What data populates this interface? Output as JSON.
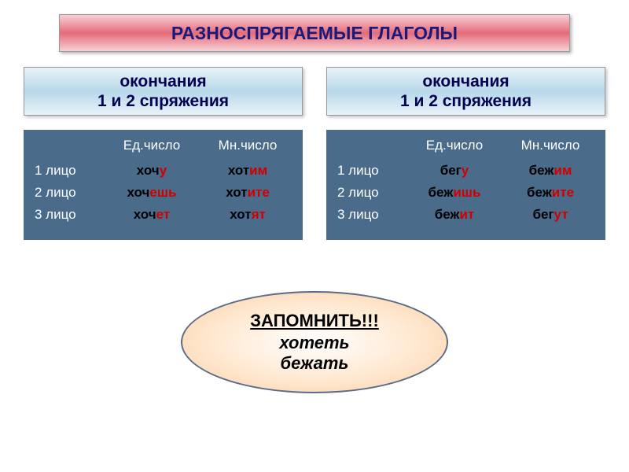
{
  "title": "РАЗНОСПРЯГАЕМЫЕ ГЛАГОЛЫ",
  "sub_left": "окончания\n1 и 2 спряжения",
  "sub_right": "окончания\n1 и 2 спряжения",
  "headers": {
    "col1": "Ед.число",
    "col2": "Мн.число"
  },
  "persons": {
    "p1": "1 лицо",
    "p2": "2 лицо",
    "p3": "3 лицо"
  },
  "left": {
    "r1": {
      "s_stem": "хоч",
      "s_end": "у",
      "p_stem": "хот",
      "p_end": "им"
    },
    "r2": {
      "s_stem": "хоч",
      "s_end": "ешь",
      "p_stem": "хот",
      "p_end": "ите"
    },
    "r3": {
      "s_stem": "хоч",
      "s_end": "ет",
      "p_stem": "хот",
      "p_end": "ят"
    }
  },
  "right": {
    "r1": {
      "s_stem": "бег",
      "s_end": "у",
      "p_stem": "беж",
      "p_end": "им"
    },
    "r2": {
      "s_stem": "беж",
      "s_end": "ишь",
      "p_stem": "беж",
      "p_end": "ите"
    },
    "r3": {
      "s_stem": "беж",
      "s_end": "ит",
      "p_stem": "бег",
      "p_end": "ут"
    }
  },
  "oval": {
    "remember": "ЗАПОМНИТЬ!!!",
    "v1": "хотеть",
    "v2": "бежать"
  },
  "colors": {
    "title_text": "#1a1a7a",
    "sub_text": "#000050",
    "table_bg": "#4a6b8a",
    "ending": "#d10000",
    "stem": "#000000"
  }
}
